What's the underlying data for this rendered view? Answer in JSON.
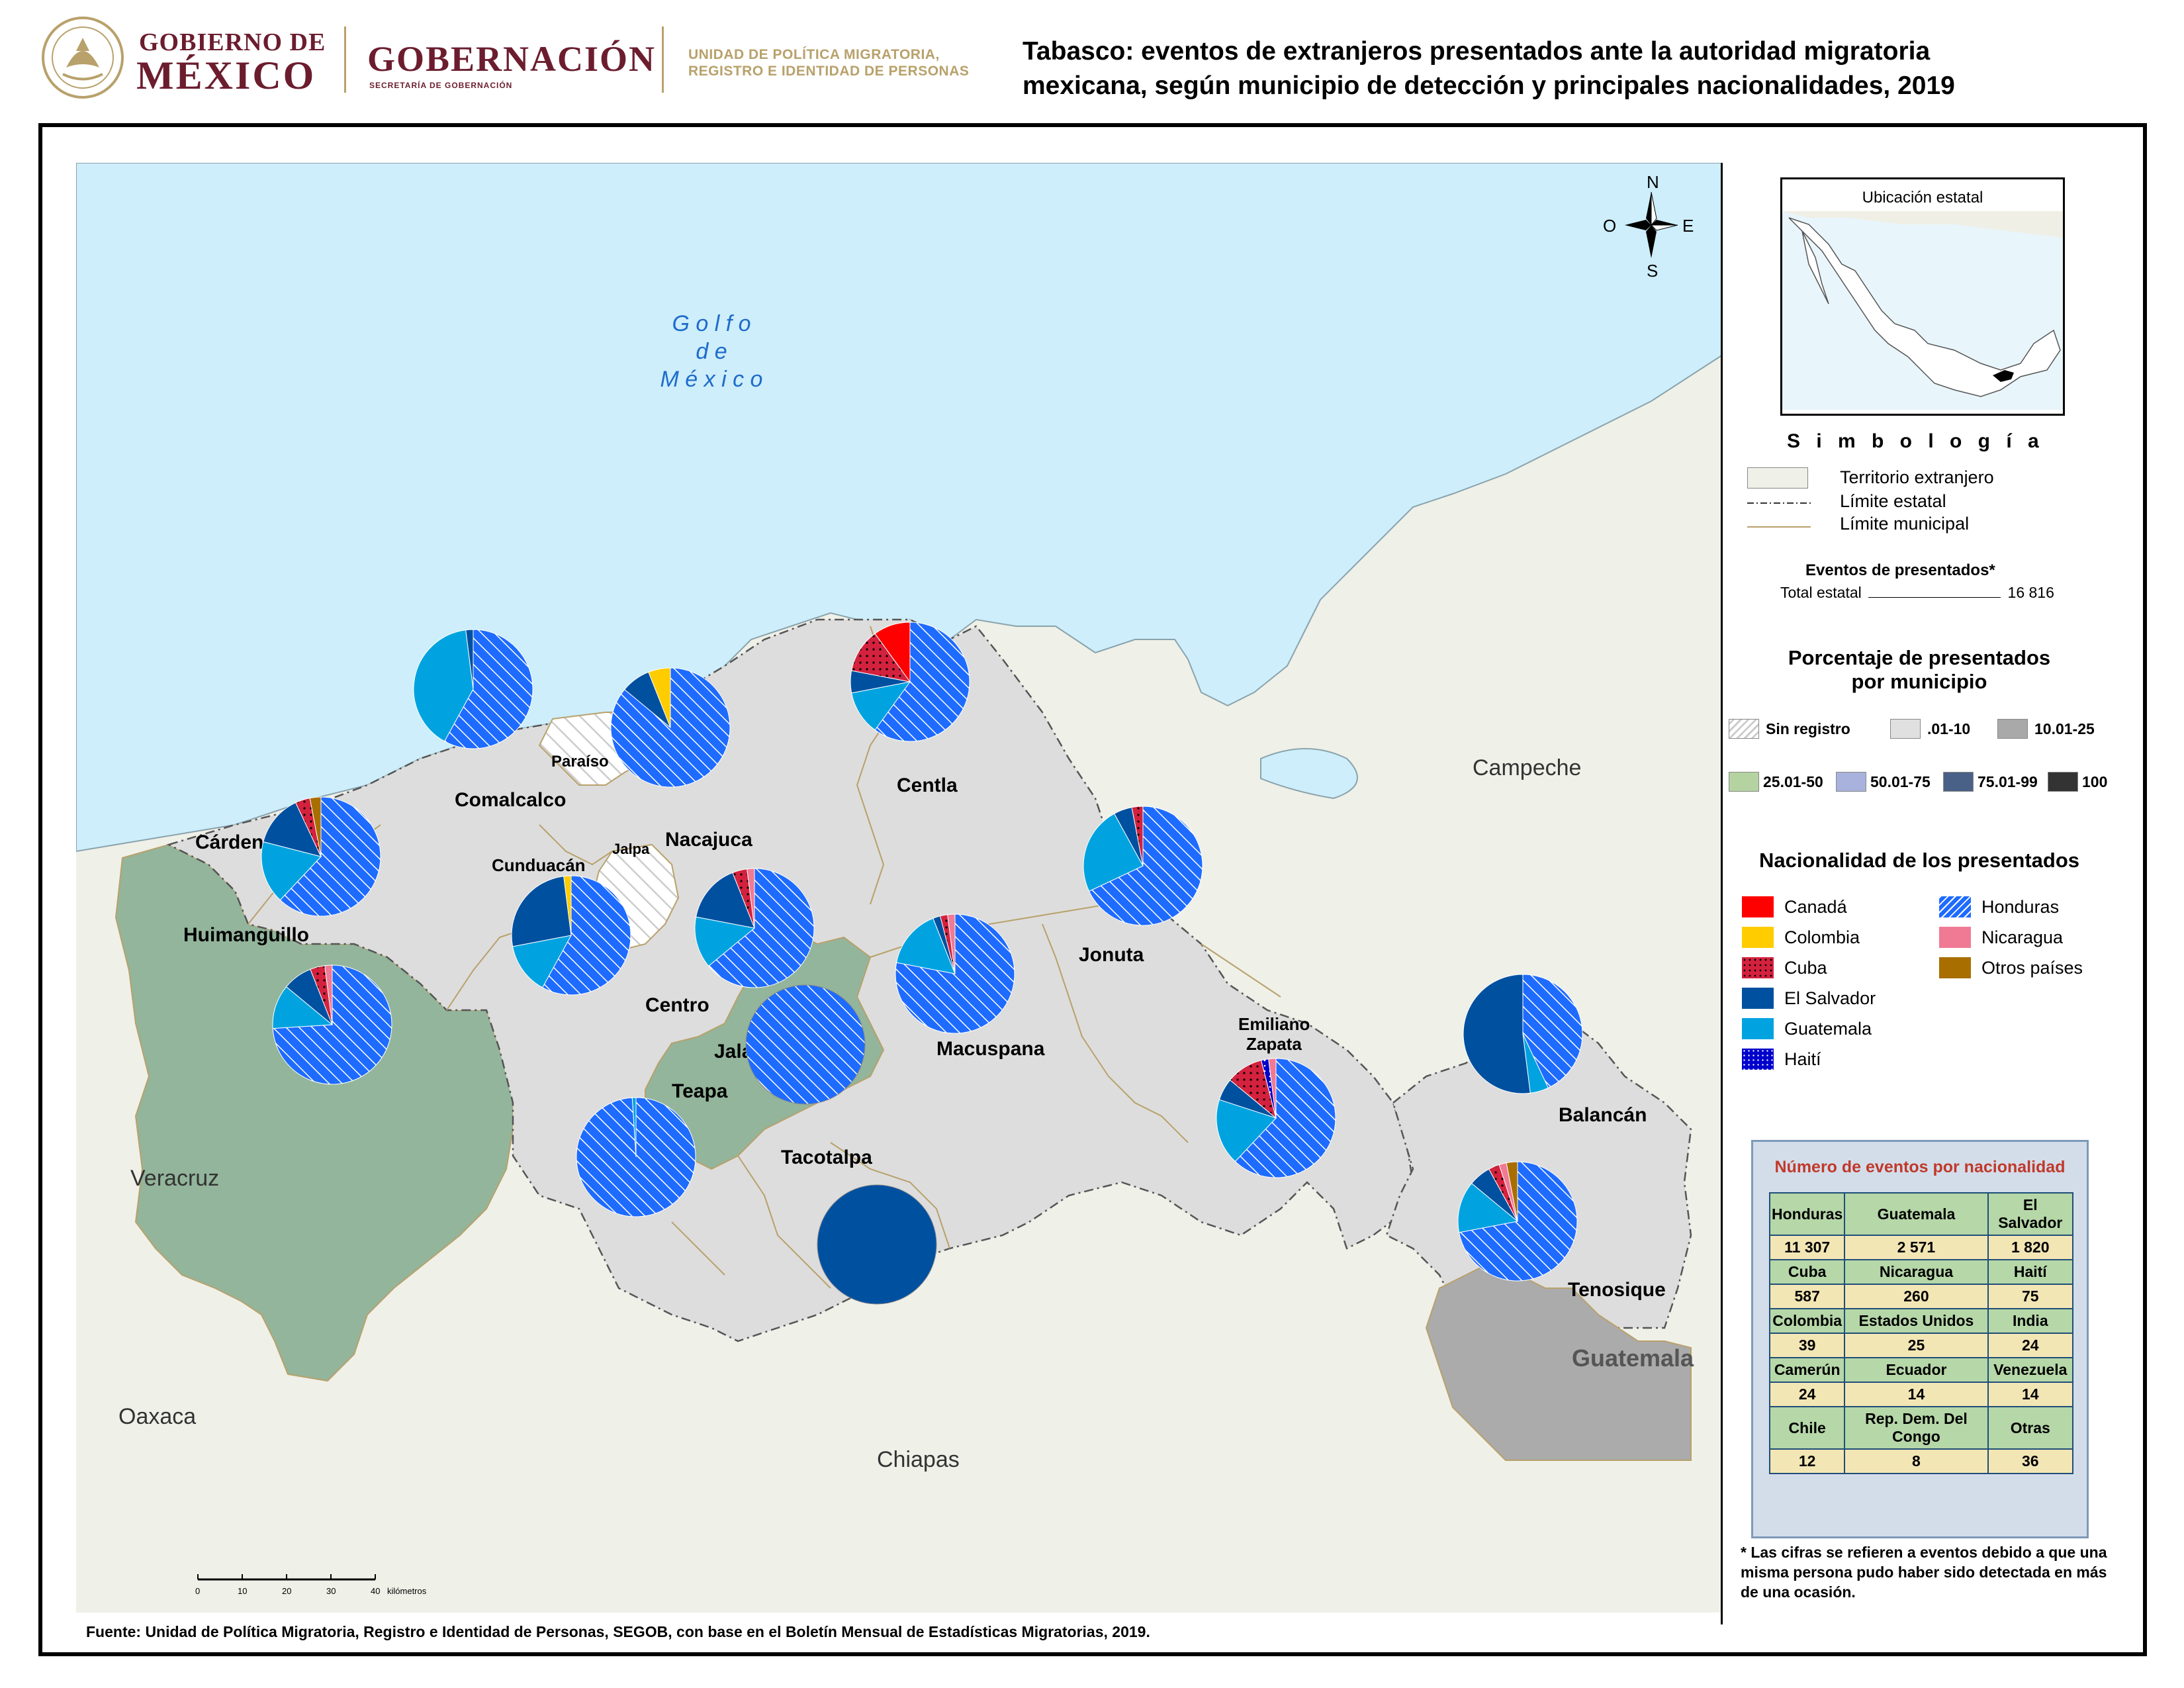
{
  "header": {
    "gob_line1": "GOBIERNO DE",
    "gob_line2": "MÉXICO",
    "gobernacion": "GOBERNACIÓN",
    "gobernacion_sub": "SECRETARÍA DE GOBERNACIÓN",
    "unit_line1": "UNIDAD DE POLÍTICA MIGRATORIA,",
    "unit_line2": "REGISTRO E IDENTIDAD DE PERSONAS",
    "title_line1": "Tabasco: eventos de extranjeros presentados ante la autoridad migratoria",
    "title_line2": "mexicana, según municipio de detección y principales nacionalidades, 2019"
  },
  "compass": {
    "n": "N",
    "s": "S",
    "e": "E",
    "o": "O"
  },
  "map": {
    "sea_label": [
      "G o l f o",
      "d e",
      "M é x i c o"
    ],
    "states": {
      "campeche": "Campeche",
      "veracruz": "Veracruz",
      "oaxaca": "Oaxaca",
      "chiapas": "Chiapas",
      "guatemala": "Guatemala"
    },
    "municipios": {
      "comalcalco": "Comalcalco",
      "paraiso": "Paraíso",
      "nacajuca": "Nacajuca",
      "centla": "Centla",
      "cardenas": "Cárdenas",
      "cunduacan": "Cunduacán",
      "jalpa": "Jalpa",
      "huimanguillo": "Huimanguillo",
      "centro": "Centro",
      "jalapa": "Jalapa",
      "teapa": "Teapa",
      "macuspana": "Macuspana",
      "jonuta": "Jonuta",
      "tacotalpa": "Tacotalpa",
      "emiliano1": "Emiliano",
      "emiliano2": "Zapata",
      "balancan": "Balancán",
      "tenosique": "Tenosique"
    },
    "scale": {
      "ticks": [
        "0",
        "10",
        "20",
        "30",
        "40"
      ],
      "unit": "kilómetros"
    }
  },
  "legend": {
    "location_title": "Ubicación estatal",
    "simbologia": "S i m b o l o g í a",
    "territorio": "Territorio extranjero",
    "limite_estatal": "Límite estatal",
    "limite_municipal": "Límite municipal",
    "eventos_title": "Eventos de presentados*",
    "total_label": "Total estatal",
    "total_value": "16 816",
    "pct_title_1": "Porcentaje de presentados",
    "pct_title_2": "por municipio",
    "pct_classes": [
      {
        "label": "Sin registro",
        "color": "#ffffff"
      },
      {
        "label": ".01-10",
        "color": "#e0e0e0"
      },
      {
        "label": "10.01-25",
        "color": "#a9a9a9"
      },
      {
        "label": "25.01-50",
        "color": "#b5d3a0"
      },
      {
        "label": "50.01-75",
        "color": "#a8b2dc"
      },
      {
        "label": "75.01-99",
        "color": "#4a6187"
      },
      {
        "label": "100",
        "color": "#333333"
      }
    ],
    "nat_title": "Nacionalidad de los presentados",
    "nationalities": [
      {
        "label": "Canadá",
        "color": "#ff0000"
      },
      {
        "label": "Colombia",
        "color": "#ffcc00"
      },
      {
        "label": "Cuba",
        "color": "#d4213d"
      },
      {
        "label": "El Salvador",
        "color": "#0050a0"
      },
      {
        "label": "Guatemala",
        "color": "#00a3e0"
      },
      {
        "label": "Haití",
        "color": "#0000cc"
      },
      {
        "label": "Honduras",
        "color": "#1e6bff"
      },
      {
        "label": "Nicaragua",
        "color": "#f07a94"
      },
      {
        "label": "Otros países",
        "color": "#a86f00"
      }
    ]
  },
  "table": {
    "title": "Número de eventos por nacionalidad",
    "rows": [
      {
        "headers": [
          "Honduras",
          "Guatemala",
          "El Salvador"
        ],
        "values": [
          "11 307",
          "2 571",
          "1 820"
        ]
      },
      {
        "headers": [
          "Cuba",
          "Nicaragua",
          "Haití"
        ],
        "values": [
          "587",
          "260",
          "75"
        ]
      },
      {
        "headers": [
          "Colombia",
          "Estados Unidos",
          "India"
        ],
        "values": [
          "39",
          "25",
          "24"
        ]
      },
      {
        "headers": [
          "Camerún",
          "Ecuador",
          "Venezuela"
        ],
        "values": [
          "24",
          "14",
          "14"
        ]
      },
      {
        "headers": [
          "Chile",
          "Rep. Dem. Del Congo",
          "Otras"
        ],
        "values": [
          "12",
          "8",
          "36"
        ]
      }
    ]
  },
  "footnote": "* Las cifras se refieren a eventos debido a que una misma persona pudo haber sido detectada en más de una ocasión.",
  "source": "Fuente: Unidad de Política Migratoria, Registro e Identidad de Personas, SEGOB, con base en el Boletín Mensual de Estadísticas Migratorias, 2019."
}
